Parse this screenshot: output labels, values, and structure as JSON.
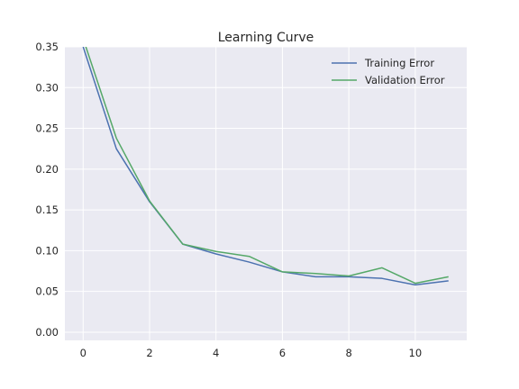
{
  "chart_data": {
    "type": "line",
    "title": "Learning Curve",
    "xlabel": "",
    "ylabel": "",
    "x": [
      0,
      1,
      2,
      3,
      4,
      5,
      6,
      7,
      8,
      9,
      10,
      11
    ],
    "xlim": [
      -0.55,
      11.55
    ],
    "ylim": [
      -0.01,
      0.35
    ],
    "xticks": [
      0,
      2,
      4,
      6,
      8,
      10
    ],
    "yticks": [
      0.0,
      0.05,
      0.1,
      0.15,
      0.2,
      0.25,
      0.3,
      0.35
    ],
    "ytick_labels": [
      "0.00",
      "0.05",
      "0.10",
      "0.15",
      "0.20",
      "0.25",
      "0.30",
      "0.35"
    ],
    "xtick_labels": [
      "0",
      "2",
      "4",
      "6",
      "8",
      "10"
    ],
    "grid": true,
    "legend_position": "top-right",
    "series": [
      {
        "name": "Training Error",
        "color": "#4c72b0",
        "values": [
          0.35,
          0.225,
          0.16,
          0.108,
          0.096,
          0.086,
          0.074,
          0.068,
          0.068,
          0.066,
          0.058,
          0.063
        ]
      },
      {
        "name": "Validation Error",
        "color": "#55a868",
        "values": [
          0.36,
          0.238,
          0.161,
          0.108,
          0.099,
          0.093,
          0.074,
          0.072,
          0.069,
          0.079,
          0.06,
          0.068
        ]
      }
    ],
    "colors": {
      "plot_background": "#eaeaf2",
      "grid": "#ffffff",
      "text": "#262626"
    }
  }
}
